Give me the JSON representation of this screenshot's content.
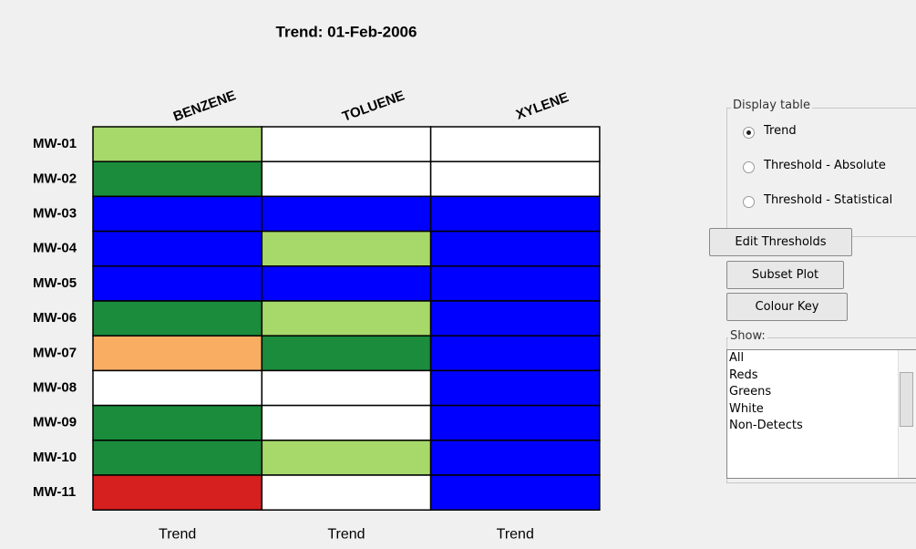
{
  "title": "Trend: 01-Feb-2006",
  "columns": [
    "BENZENE",
    "TOLUENE",
    "XYLENE"
  ],
  "rows": [
    {
      "label": "MW-01",
      "colors": [
        "#a6d86a",
        "#ffffff",
        "#ffffff"
      ]
    },
    {
      "label": "MW-02",
      "colors": [
        "#1a8c3c",
        "#ffffff",
        "#ffffff"
      ]
    },
    {
      "label": "MW-03",
      "colors": [
        "#0000ff",
        "#0000ff",
        "#0000ff"
      ]
    },
    {
      "label": "MW-04",
      "colors": [
        "#0000ff",
        "#a6d86a",
        "#0000ff"
      ]
    },
    {
      "label": "MW-05",
      "colors": [
        "#0000ff",
        "#0000ff",
        "#0000ff"
      ]
    },
    {
      "label": "MW-06",
      "colors": [
        "#1a8c3c",
        "#a6d86a",
        "#0000ff"
      ]
    },
    {
      "label": "MW-07",
      "colors": [
        "#f9ad63",
        "#1a8c3c",
        "#0000ff"
      ]
    },
    {
      "label": "MW-08",
      "colors": [
        "#ffffff",
        "#ffffff",
        "#0000ff"
      ]
    },
    {
      "label": "MW-09",
      "colors": [
        "#1a8c3c",
        "#ffffff",
        "#0000ff"
      ]
    },
    {
      "label": "MW-10",
      "colors": [
        "#1a8c3c",
        "#a6d86a",
        "#0000ff"
      ]
    },
    {
      "label": "MW-11",
      "colors": [
        "#d61f1f",
        "#ffffff",
        "#0000ff"
      ]
    }
  ],
  "footer": [
    "Trend",
    "Trend",
    "Trend"
  ],
  "panel": {
    "display_table": {
      "title": "Display table",
      "options": [
        "Trend",
        "Threshold - Absolute",
        "Threshold - Statistical"
      ],
      "selected": 0
    },
    "buttons": [
      "Edit Thresholds",
      "Subset Plot",
      "Colour Key"
    ],
    "show": {
      "title": "Show:",
      "items": [
        "All",
        "Reds",
        "Greens",
        "White",
        "Non-Detects"
      ]
    }
  }
}
